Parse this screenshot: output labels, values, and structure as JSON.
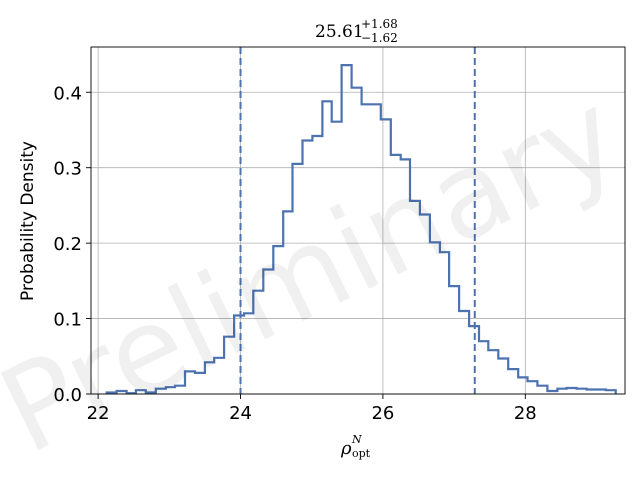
{
  "chart_data": {
    "type": "histogram",
    "title": {
      "value": "25.61",
      "upper": "+1.68",
      "lower": "−1.62"
    },
    "xlabel": {
      "symbol": "ρ",
      "superscript": "N",
      "subscript": "opt"
    },
    "ylabel": "Probability Density",
    "xlim": [
      21.9,
      29.4
    ],
    "ylim": [
      0,
      0.46
    ],
    "xticks": [
      22,
      24,
      26,
      28
    ],
    "xtick_labels": [
      "22",
      "24",
      "26",
      "28"
    ],
    "yticks": [
      0.0,
      0.1,
      0.2,
      0.3,
      0.4
    ],
    "ytick_labels": [
      "0.0",
      "0.1",
      "0.2",
      "0.3",
      "0.4"
    ],
    "grid": true,
    "bin_edges": [
      22.12,
      22.26,
      22.4,
      22.53,
      22.67,
      22.81,
      22.95,
      23.08,
      23.22,
      23.36,
      23.5,
      23.63,
      23.77,
      23.91,
      24.05,
      24.18,
      24.32,
      24.46,
      24.6,
      24.73,
      24.87,
      25.01,
      25.15,
      25.28,
      25.42,
      25.56,
      25.7,
      25.83,
      25.97,
      26.11,
      26.25,
      26.38,
      26.52,
      26.66,
      26.8,
      26.93,
      27.07,
      27.21,
      27.35,
      27.48,
      27.62,
      27.76,
      27.9,
      28.03,
      28.17,
      28.31,
      28.45,
      28.58,
      28.72,
      28.86,
      29.0,
      29.13,
      29.27
    ],
    "densities": [
      0.002,
      0.004,
      0.001,
      0.005,
      0.002,
      0.007,
      0.009,
      0.011,
      0.03,
      0.028,
      0.042,
      0.048,
      0.076,
      0.104,
      0.107,
      0.137,
      0.165,
      0.196,
      0.242,
      0.305,
      0.336,
      0.342,
      0.388,
      0.361,
      0.436,
      0.406,
      0.384,
      0.384,
      0.364,
      0.317,
      0.311,
      0.256,
      0.238,
      0.201,
      0.188,
      0.143,
      0.11,
      0.09,
      0.07,
      0.058,
      0.047,
      0.033,
      0.022,
      0.017,
      0.011,
      0.004,
      0.007,
      0.008,
      0.007,
      0.006,
      0.006,
      0.005
    ],
    "vlines": [
      24.0,
      27.29
    ],
    "series_color": "#4c72b0",
    "watermark": "Preliminary"
  }
}
